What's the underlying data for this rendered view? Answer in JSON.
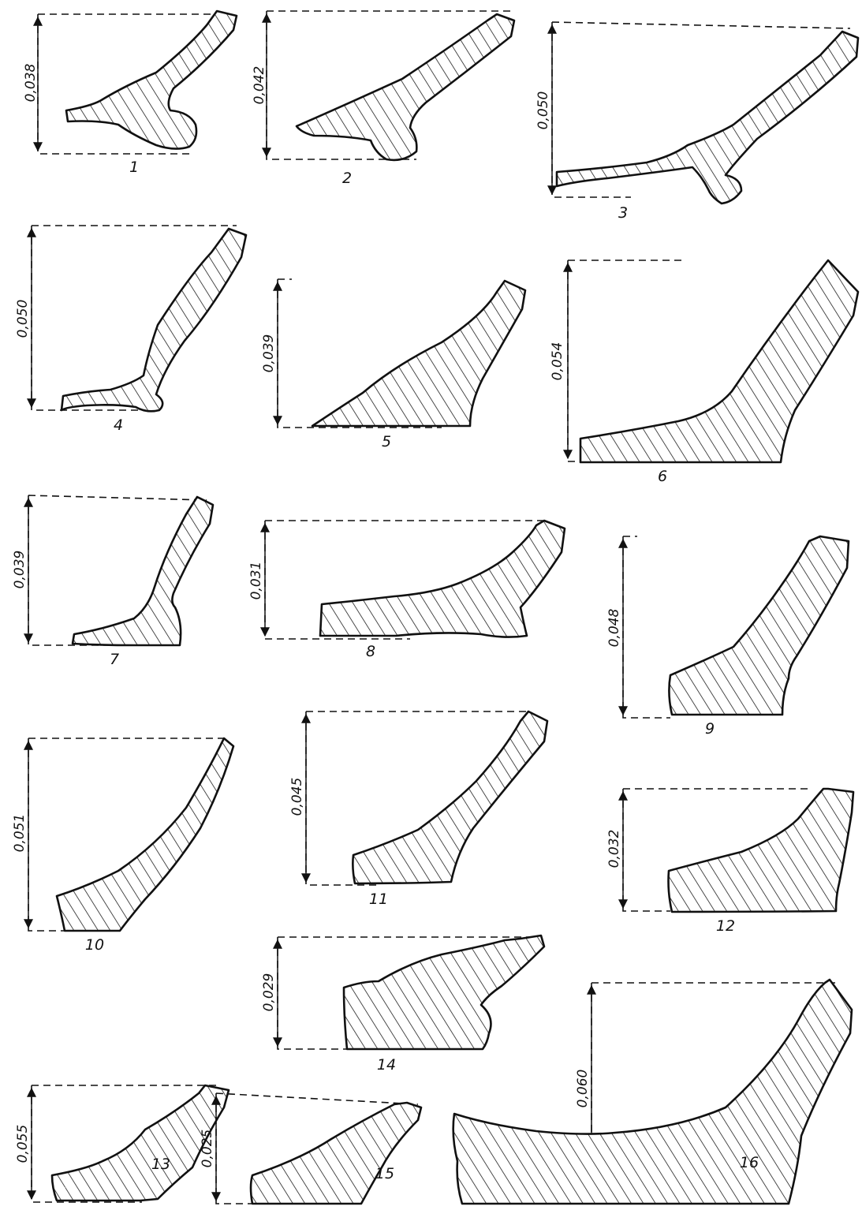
{
  "figure": {
    "fragments": [
      {
        "number": "1",
        "height": "0,038"
      },
      {
        "number": "2",
        "height": "0,042"
      },
      {
        "number": "3",
        "height": "0,050"
      },
      {
        "number": "4",
        "height": "0,050"
      },
      {
        "number": "5",
        "height": "0,039"
      },
      {
        "number": "6",
        "height": "0,054"
      },
      {
        "number": "7",
        "height": "0,039"
      },
      {
        "number": "8",
        "height": "0,031"
      },
      {
        "number": "9",
        "height": "0,048"
      },
      {
        "number": "10",
        "height": "0,051"
      },
      {
        "number": "11",
        "height": "0,045"
      },
      {
        "number": "12",
        "height": "0,032"
      },
      {
        "number": "13",
        "height": "0,055"
      },
      {
        "number": "14",
        "height": "0,029"
      },
      {
        "number": "15",
        "height": "0,025"
      },
      {
        "number": "16",
        "height": "0,060"
      }
    ]
  }
}
